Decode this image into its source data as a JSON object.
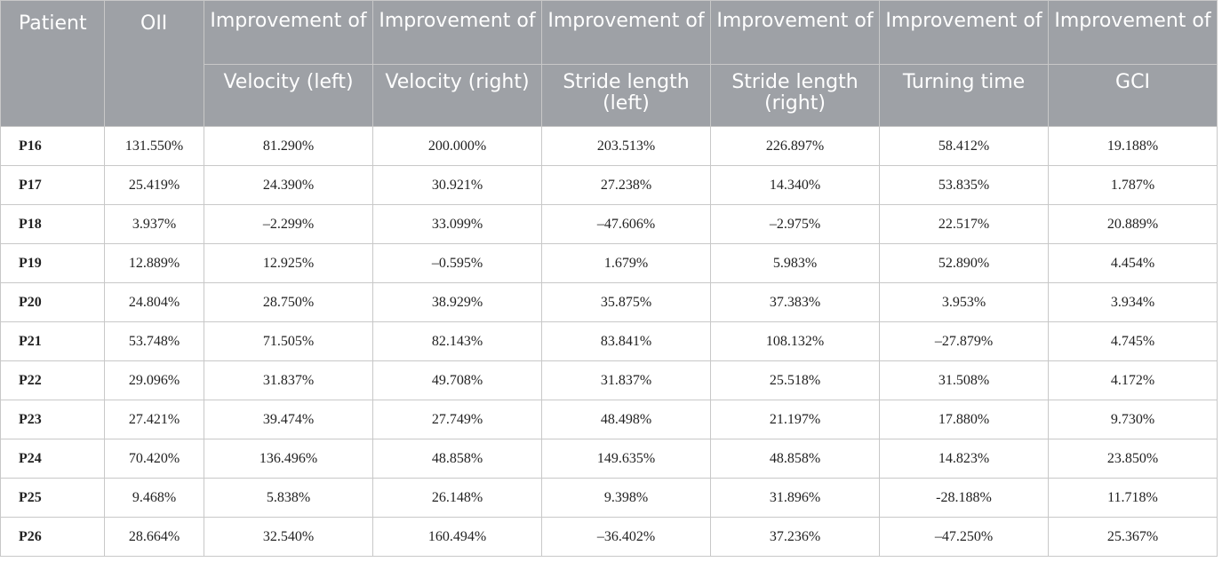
{
  "table": {
    "headers": {
      "patient": "Patient",
      "oii": "OII",
      "improvement": "Improvement of",
      "metrics": [
        "Velocity (left)",
        "Velocity (right)",
        "Stride length (left)",
        "Stride length (right)",
        "Turning time",
        "GCI"
      ]
    },
    "rows": [
      [
        "P16",
        "131.550%",
        "81.290%",
        "200.000%",
        "203.513%",
        "226.897%",
        "58.412%",
        "19.188%"
      ],
      [
        "P17",
        "25.419%",
        "24.390%",
        "30.921%",
        "27.238%",
        "14.340%",
        "53.835%",
        "1.787%"
      ],
      [
        "P18",
        "3.937%",
        "–2.299%",
        "33.099%",
        "–47.606%",
        "–2.975%",
        "22.517%",
        "20.889%"
      ],
      [
        "P19",
        "12.889%",
        "12.925%",
        "–0.595%",
        "1.679%",
        "5.983%",
        "52.890%",
        "4.454%"
      ],
      [
        "P20",
        "24.804%",
        "28.750%",
        "38.929%",
        "35.875%",
        "37.383%",
        "3.953%",
        "3.934%"
      ],
      [
        "P21",
        "53.748%",
        "71.505%",
        "82.143%",
        "83.841%",
        "108.132%",
        "–27.879%",
        "4.745%"
      ],
      [
        "P22",
        "29.096%",
        "31.837%",
        "49.708%",
        "31.837%",
        "25.518%",
        "31.508%",
        "4.172%"
      ],
      [
        "P23",
        "27.421%",
        "39.474%",
        "27.749%",
        "48.498%",
        "21.197%",
        "17.880%",
        "9.730%"
      ],
      [
        "P24",
        "70.420%",
        "136.496%",
        "48.858%",
        "149.635%",
        "48.858%",
        "14.823%",
        "23.850%"
      ],
      [
        "P25",
        "9.468%",
        "5.838%",
        "26.148%",
        "9.398%",
        "31.896%",
        "-28.188%",
        "11.718%"
      ],
      [
        "P26",
        "28.664%",
        "32.540%",
        "160.494%",
        "–36.402%",
        "37.236%",
        "–47.250%",
        "25.367%"
      ]
    ]
  }
}
